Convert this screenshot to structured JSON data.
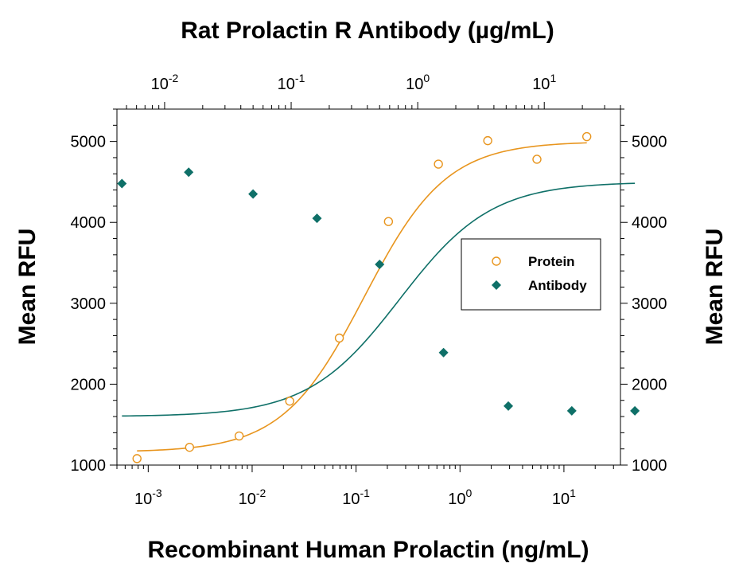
{
  "chart_data": {
    "type": "scatter",
    "x_scale": "log",
    "y_scale": "linear",
    "xlabel": "Recombinant Human Prolactin (ng/mL)",
    "x2label": "Rat Prolactin R Antibody (µg/mL)",
    "ylabel": "Mean RFU",
    "y2label": "Mean RFU",
    "ylim": [
      1000,
      5400
    ],
    "xlim": [
      0.0005,
      35
    ],
    "x2lim": [
      0.0042,
      40
    ],
    "yticks": [
      1000,
      2000,
      3000,
      4000,
      5000
    ],
    "yticks_right": [
      1000,
      2000,
      3000,
      4000,
      5000
    ],
    "xticks": [
      {
        "value": 0.001,
        "base": "10",
        "exp": "-3"
      },
      {
        "value": 0.01,
        "base": "10",
        "exp": "-2"
      },
      {
        "value": 0.1,
        "base": "10",
        "exp": "-1"
      },
      {
        "value": 1,
        "base": "10",
        "exp": "0"
      },
      {
        "value": 10,
        "base": "10",
        "exp": "1"
      }
    ],
    "x2ticks": [
      {
        "value": 0.01,
        "base": "10",
        "exp": "-2"
      },
      {
        "value": 0.1,
        "base": "10",
        "exp": "-1"
      },
      {
        "value": 1,
        "base": "10",
        "exp": "0"
      },
      {
        "value": 10,
        "base": "10",
        "exp": "1"
      }
    ],
    "grid": false,
    "legend_position": "right",
    "series": [
      {
        "name": "Protein",
        "axis": "bottom",
        "marker": "open-circle",
        "color": "#e8951e",
        "points": [
          {
            "x": 0.00078,
            "y": 1080
          },
          {
            "x": 0.0025,
            "y": 1220
          },
          {
            "x": 0.0075,
            "y": 1360
          },
          {
            "x": 0.023,
            "y": 1790
          },
          {
            "x": 0.069,
            "y": 2570
          },
          {
            "x": 0.205,
            "y": 4010
          },
          {
            "x": 0.62,
            "y": 4720
          },
          {
            "x": 1.85,
            "y": 5010
          },
          {
            "x": 5.5,
            "y": 4780
          },
          {
            "x": 16.6,
            "y": 5060
          }
        ],
        "fit": {
          "bottom": 1160,
          "top": 5000,
          "ec50": 0.12,
          "hill": 1.1
        }
      },
      {
        "name": "Antibody",
        "axis": "top",
        "marker": "filled-diamond",
        "color": "#0f7068",
        "points": [
          {
            "x": 0.0046,
            "y": 4480
          },
          {
            "x": 0.0155,
            "y": 4620
          },
          {
            "x": 0.05,
            "y": 4350
          },
          {
            "x": 0.16,
            "y": 4050
          },
          {
            "x": 0.5,
            "y": 3480
          },
          {
            "x": 1.6,
            "y": 2390
          },
          {
            "x": 5.2,
            "y": 1730
          },
          {
            "x": 16.5,
            "y": 1670
          },
          {
            "x": 52,
            "y": 1670
          }
        ],
        "fit": {
          "bottom": 1600,
          "top": 4500,
          "ec50": 0.72,
          "hill": 1.2
        }
      }
    ]
  }
}
